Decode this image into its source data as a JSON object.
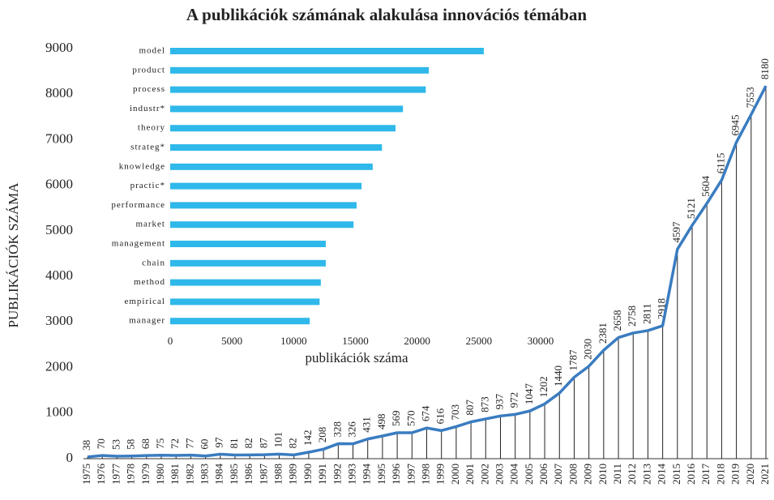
{
  "chart_data": [
    {
      "type": "line",
      "title": "A publikációk számának alakulása innovációs témában",
      "ylabel": "PUBLIKÁCIÓK SZÁMA",
      "categories": [
        "1975",
        "1976",
        "1977",
        "1978",
        "1979",
        "1980",
        "1981",
        "1982",
        "1983",
        "1984",
        "1985",
        "1986",
        "1987",
        "1988",
        "1989",
        "1990",
        "1991",
        "1992",
        "1993",
        "1994",
        "1995",
        "1996",
        "1997",
        "1998",
        "1999",
        "2000",
        "2001",
        "2002",
        "2003",
        "2004",
        "2005",
        "2006",
        "2007",
        "2008",
        "2009",
        "2010",
        "2011",
        "2012",
        "2013",
        "2014",
        "2015",
        "2016",
        "2017",
        "2018",
        "2019",
        "2020",
        "2021"
      ],
      "values": [
        38,
        70,
        53,
        58,
        68,
        75,
        72,
        77,
        60,
        97,
        81,
        82,
        87,
        101,
        82,
        142,
        208,
        328,
        326,
        431,
        498,
        569,
        570,
        674,
        616,
        703,
        807,
        873,
        937,
        972,
        1047,
        1202,
        1440,
        1787,
        2030,
        2381,
        2658,
        2758,
        2811,
        2918,
        4597,
        5121,
        5604,
        6115,
        6945,
        7553,
        8180
      ],
      "color": "#3a7cc0",
      "ylim": [
        0,
        9000
      ],
      "yticks": [
        0,
        1000,
        2000,
        3000,
        4000,
        5000,
        6000,
        7000,
        8000,
        9000
      ]
    },
    {
      "type": "bar",
      "orientation": "horizontal",
      "xlabel": "publikációk száma",
      "categories": [
        "model",
        "product",
        "process",
        "industr*",
        "theory",
        "strateg*",
        "knowledge",
        "practic*",
        "performance",
        "market",
        "management",
        "chain",
        "method",
        "empirical",
        "manager"
      ],
      "values": [
        25400,
        20950,
        20700,
        18850,
        18250,
        17150,
        16400,
        15500,
        15100,
        14850,
        12600,
        12600,
        12200,
        12100,
        11300
      ],
      "color": "#2fb8ea",
      "xlim": [
        0,
        30000
      ],
      "xticks": [
        0,
        5000,
        10000,
        15000,
        20000,
        25000,
        30000
      ]
    }
  ]
}
